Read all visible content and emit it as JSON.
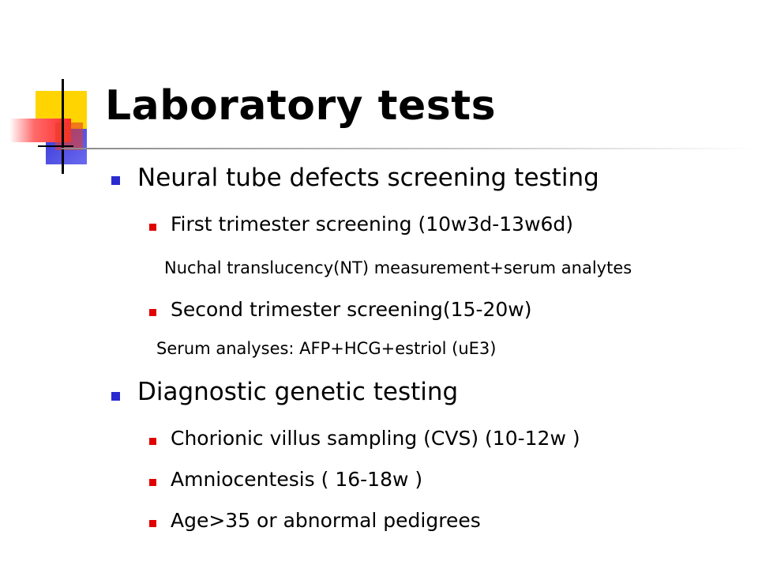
{
  "slide": {
    "title": "Laboratory tests",
    "colors": {
      "bullet_level1": "#2a2ad0",
      "bullet_level2": "#e00000",
      "logo_yellow": "#ffd400",
      "logo_blue": "#3a3ad8",
      "logo_red": "#ff2a2a"
    },
    "items": [
      {
        "text": "Neural tube defects screening testing"
      },
      {
        "text": "First trimester screening (10w3d-13w6d)"
      },
      {
        "text": "Nuchal translucency(NT) measurement+serum analytes"
      },
      {
        "text": "Second trimester screening(15-20w)"
      },
      {
        "text": "Serum analyses: AFP+HCG+estriol (uE3)"
      },
      {
        "text": "Diagnostic genetic testing"
      },
      {
        "text": "Chorionic villus sampling  (CVS) (10-12w )"
      },
      {
        "text": "Amniocentesis ( 16-18w )"
      },
      {
        "text": "Age>35 or abnormal pedigrees"
      }
    ]
  }
}
